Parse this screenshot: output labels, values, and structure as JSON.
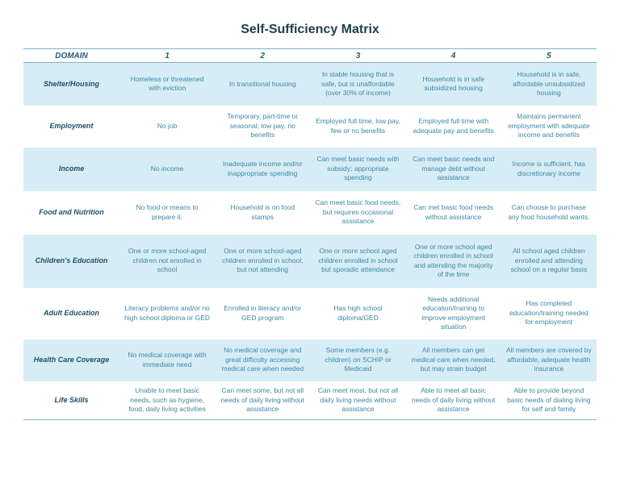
{
  "title": "Self-Sufficiency Matrix",
  "headers": [
    "DOMAIN",
    "1",
    "2",
    "3",
    "4",
    "5"
  ],
  "rows": [
    {
      "domain": "Shelter/Housing",
      "cells": [
        "Homeless or threatened with eviction",
        "In transitional housing",
        "In stable housing that is safe, but is unaffordable (over 30% of income)",
        "Household is in safe subsidized housing",
        "Household is in safe, affordable unsubsidized housing"
      ]
    },
    {
      "domain": "Employment",
      "cells": [
        "No job",
        "Temporary, part-time or seasonal; low pay, no benefits",
        "Employed full time, low pay, few or no benefits",
        "Employed full time with adequate pay and benefits",
        "Maintains permanent employment with adequate income and benefits"
      ]
    },
    {
      "domain": "Income",
      "cells": [
        "No income",
        "Inadequate income and/or inappropriate spending",
        "Can meet basic needs with subsidy; appropriate spending",
        "Can meet basic needs and manage debt without assistance",
        "Income is sufficient, has discretionary income"
      ]
    },
    {
      "domain": "Food and Nutrition",
      "cells": [
        "No food or means to prepare it.",
        "Household is on food stamps",
        "Can meet basic food needs, but requires occasional assistance",
        "Can met basic food needs without assistance",
        "Can choose to purchase any food household wants."
      ]
    },
    {
      "domain": "Children's Education",
      "cells": [
        "One or more school-aged children not enrolled in school",
        "One or more school-aged children enrolled in school, but not attending",
        "One or more school aged children enrolled in school but sporadic attendance",
        "One or more school aged children enrolled in school and attending the majority of the time",
        "All school aged children enrolled and attending school on a regular basis"
      ]
    },
    {
      "domain": "Adult Education",
      "cells": [
        "Literacy problems and/or no high school diploma or GED",
        "Enrolled in literacy and/or GED program",
        "Has high school diploma/GED",
        "Needs additional education/training to improve employment situation",
        "Has completed education/training needed for employment"
      ]
    },
    {
      "domain": "Health Care Coverage",
      "cells": [
        "No medical coverage with immediate need",
        "No medical coverage and great difficulty accessing medical care when needed",
        "Some members (e.g. children) on SCHIP or Medicaid",
        "All members can get medical care when needed, but may strain budget",
        "All members are covered by affordable, adequate health insurance"
      ]
    },
    {
      "domain": "Life Skills",
      "cells": [
        "Unable to meet basic needs, such as hygiene, food, daily living activities",
        "Can meet some, but not all needs of daily living without assistance",
        "Can meet most, but not all daily living needs without assistance",
        "Able to meet all basic needs of daily living without assistance",
        "Able to provide beyond basic needs of dialing living for self and family"
      ]
    }
  ]
}
